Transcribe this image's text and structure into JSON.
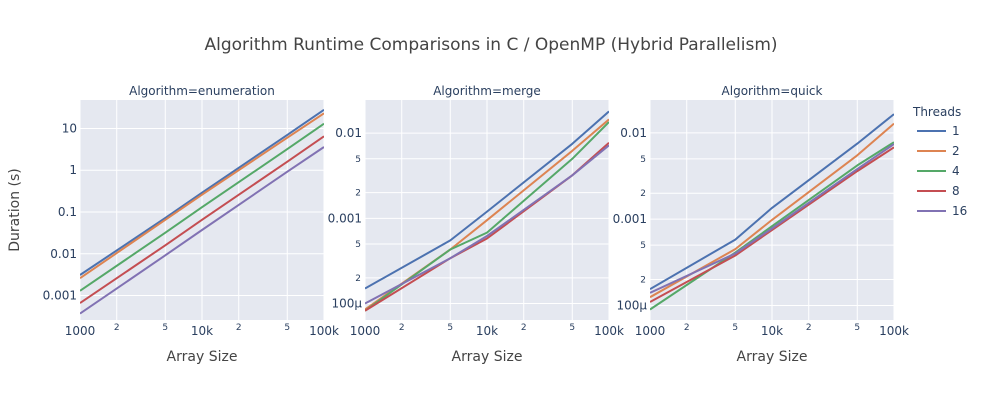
{
  "title": "Algorithm Runtime Comparisons in C / OpenMP (Hybrid Parallelism)",
  "y_axis_title": "Duration (s)",
  "legend": {
    "title": "Threads",
    "items": [
      {
        "name": "1",
        "color": "#4c72b0"
      },
      {
        "name": "2",
        "color": "#dd8452"
      },
      {
        "name": "4",
        "color": "#55a868"
      },
      {
        "name": "8",
        "color": "#c44e52"
      },
      {
        "name": "16",
        "color": "#8172b3"
      }
    ]
  },
  "chart_data": [
    {
      "type": "line",
      "title": "Algorithm=enumeration",
      "xlabel": "Array Size",
      "ylabel": "Duration (s)",
      "x_scale": "log",
      "y_scale": "log",
      "xlim": [
        1000,
        100000
      ],
      "ylim": [
        0.00026,
        48
      ],
      "x_major_ticks": [
        {
          "v": 1000,
          "label": "1000"
        },
        {
          "v": 10000,
          "label": "10k"
        },
        {
          "v": 100000,
          "label": "100k"
        }
      ],
      "x_minor_ticks": [
        {
          "v": 2000,
          "label": "2"
        },
        {
          "v": 5000,
          "label": "5"
        },
        {
          "v": 20000,
          "label": "2"
        },
        {
          "v": 50000,
          "label": "5"
        }
      ],
      "y_major_ticks": [
        {
          "v": 0.001,
          "label": "0.001"
        },
        {
          "v": 0.01,
          "label": "0.01"
        },
        {
          "v": 0.1,
          "label": "0.1"
        },
        {
          "v": 1,
          "label": "1"
        },
        {
          "v": 10,
          "label": "10"
        }
      ],
      "y_minor_ticks": [],
      "x": [
        1000,
        5000,
        10000,
        50000,
        100000
      ],
      "series": [
        {
          "name": "1",
          "values": [
            0.0031,
            0.072,
            0.29,
            7.0,
            28.0
          ]
        },
        {
          "name": "2",
          "values": [
            0.0026,
            0.065,
            0.26,
            6.0,
            23.0
          ]
        },
        {
          "name": "4",
          "values": [
            0.0013,
            0.032,
            0.13,
            3.2,
            13.0
          ]
        },
        {
          "name": "8",
          "values": [
            0.00066,
            0.016,
            0.065,
            1.6,
            6.5
          ]
        },
        {
          "name": "16",
          "values": [
            0.00037,
            0.0092,
            0.037,
            0.92,
            3.6
          ]
        }
      ]
    },
    {
      "type": "line",
      "title": "Algorithm=merge",
      "xlabel": "Array Size",
      "ylabel": "",
      "x_scale": "log",
      "y_scale": "log",
      "xlim": [
        1000,
        100000
      ],
      "ylim": [
        6.4e-05,
        0.0245
      ],
      "x_major_ticks": [
        {
          "v": 1000,
          "label": "1000"
        },
        {
          "v": 10000,
          "label": "10k"
        },
        {
          "v": 100000,
          "label": "100k"
        }
      ],
      "x_minor_ticks": [
        {
          "v": 2000,
          "label": "2"
        },
        {
          "v": 5000,
          "label": "5"
        },
        {
          "v": 20000,
          "label": "2"
        },
        {
          "v": 50000,
          "label": "5"
        }
      ],
      "y_major_ticks": [
        {
          "v": 0.0001,
          "label": "100μ"
        },
        {
          "v": 0.001,
          "label": "0.001"
        },
        {
          "v": 0.01,
          "label": "0.01"
        }
      ],
      "y_minor_ticks": [
        {
          "v": 0.0002,
          "label": "2"
        },
        {
          "v": 0.0005,
          "label": "5"
        },
        {
          "v": 0.002,
          "label": "2"
        },
        {
          "v": 0.005,
          "label": "5"
        }
      ],
      "x": [
        1000,
        5000,
        10000,
        50000,
        100000
      ],
      "series": [
        {
          "name": "1",
          "values": [
            0.00015,
            0.00055,
            0.0012,
            0.0075,
            0.018
          ]
        },
        {
          "name": "2",
          "values": [
            8.5e-05,
            0.00043,
            0.00095,
            0.0062,
            0.0145
          ]
        },
        {
          "name": "4",
          "values": [
            8.2e-05,
            0.00043,
            0.00068,
            0.005,
            0.0135
          ]
        },
        {
          "name": "8",
          "values": [
            8.2e-05,
            0.00034,
            0.00058,
            0.0032,
            0.0077
          ]
        },
        {
          "name": "16",
          "values": [
            0.0001,
            0.00034,
            0.00062,
            0.0032,
            0.0072
          ]
        }
      ]
    },
    {
      "type": "line",
      "title": "Algorithm=quick",
      "xlabel": "Array Size",
      "ylabel": "",
      "x_scale": "log",
      "y_scale": "log",
      "xlim": [
        1000,
        100000
      ],
      "ylim": [
        6.8e-05,
        0.024
      ],
      "x_major_ticks": [
        {
          "v": 1000,
          "label": "1000"
        },
        {
          "v": 10000,
          "label": "10k"
        },
        {
          "v": 100000,
          "label": "100k"
        }
      ],
      "x_minor_ticks": [
        {
          "v": 2000,
          "label": "2"
        },
        {
          "v": 5000,
          "label": "5"
        },
        {
          "v": 20000,
          "label": "2"
        },
        {
          "v": 50000,
          "label": "5"
        }
      ],
      "y_major_ticks": [
        {
          "v": 0.0001,
          "label": "100μ"
        },
        {
          "v": 0.001,
          "label": "0.001"
        },
        {
          "v": 0.01,
          "label": "0.01"
        }
      ],
      "y_minor_ticks": [
        {
          "v": 0.0002,
          "label": "2"
        },
        {
          "v": 0.0005,
          "label": "5"
        },
        {
          "v": 0.002,
          "label": "2"
        },
        {
          "v": 0.005,
          "label": "5"
        }
      ],
      "x": [
        1000,
        5000,
        10000,
        50000,
        100000
      ],
      "series": [
        {
          "name": "1",
          "values": [
            0.000155,
            0.00058,
            0.00135,
            0.0075,
            0.0165
          ]
        },
        {
          "name": "2",
          "values": [
            0.000125,
            0.00045,
            0.00098,
            0.0055,
            0.0128
          ]
        },
        {
          "name": "4",
          "values": [
            9e-05,
            0.00041,
            0.00083,
            0.0042,
            0.0078
          ]
        },
        {
          "name": "8",
          "values": [
            0.00011,
            0.00038,
            0.00075,
            0.0036,
            0.0068
          ]
        },
        {
          "name": "16",
          "values": [
            0.00014,
            0.0004,
            0.00078,
            0.0038,
            0.0074
          ]
        }
      ]
    }
  ]
}
